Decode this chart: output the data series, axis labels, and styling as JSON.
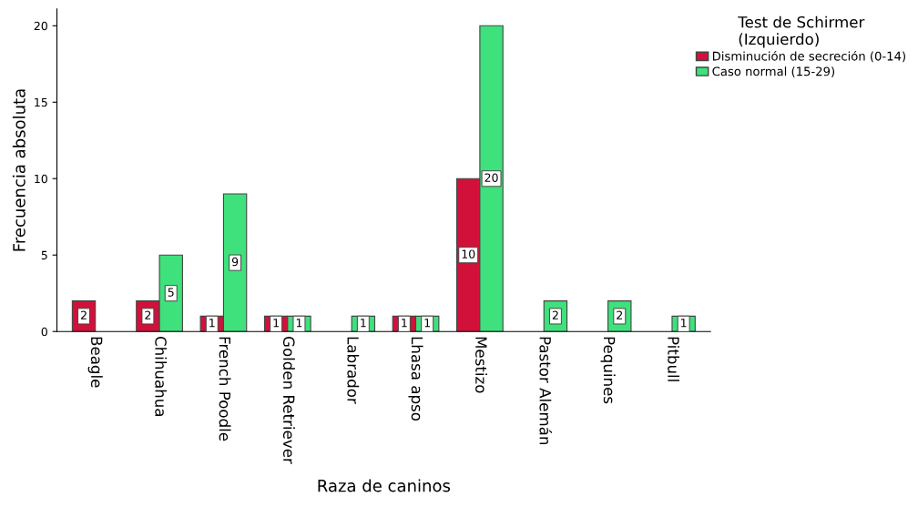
{
  "chart_data": {
    "type": "bar",
    "xlabel": "Raza de caninos",
    "ylabel": "Frecuencia absoluta",
    "legend_title": "Test de Schirmer\n(Izquierdo)",
    "categories": [
      "Beagle",
      "Chihuahua",
      "French Poodle",
      "Golden Retriever",
      "Labrador",
      "Lhasa apso",
      "Mestizo",
      "Pastor Alemán",
      "Pequines",
      "Pitbull"
    ],
    "series": [
      {
        "name": "Disminución de secreción (0-14)",
        "color": "#d2113a",
        "values": [
          2,
          2,
          1,
          1,
          null,
          1,
          10,
          null,
          null,
          null
        ]
      },
      {
        "name": "Caso normal (15-29)",
        "color": "#3ee17b",
        "values": [
          null,
          5,
          9,
          1,
          1,
          1,
          20,
          2,
          2,
          1
        ]
      }
    ],
    "ylim": [
      0,
      21.1
    ],
    "yticks": [
      0,
      5,
      10,
      15,
      20
    ],
    "grid": false,
    "legend": "top right",
    "data_labels": true
  }
}
